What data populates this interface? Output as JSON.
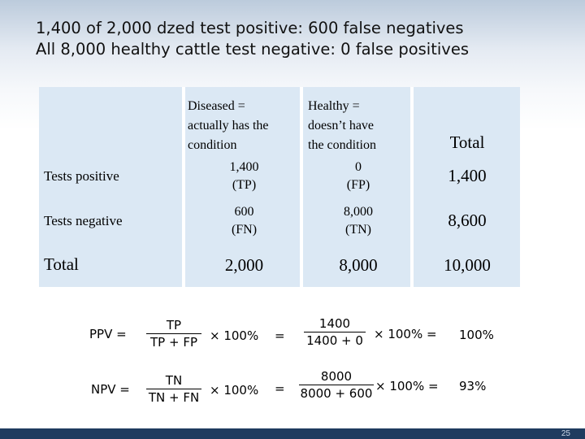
{
  "slide": {
    "title_line1": "1,400 of 2,000 dzed test positive: 600 false negatives",
    "title_line2": "All 8,000 healthy cattle test negative: 0 false positives",
    "page_number": "25"
  },
  "table": {
    "header_diseased": [
      "Diseased =",
      "actually has the",
      "condition"
    ],
    "header_healthy": [
      "Healthy =",
      "doesn’t have",
      "the condition"
    ],
    "header_total": "Total",
    "rows": [
      {
        "label": "Tests positive",
        "diseased": [
          "1,400",
          "(TP)"
        ],
        "healthy": [
          "0",
          "(FP)"
        ],
        "total": "1,400"
      },
      {
        "label": "Tests negative",
        "diseased": [
          "600",
          "(FN)"
        ],
        "healthy": [
          "8,000",
          "(TN)"
        ],
        "total": "8,600"
      },
      {
        "label": "Total",
        "diseased": [
          "2,000"
        ],
        "healthy": [
          "8,000"
        ],
        "total": "10,000"
      }
    ]
  },
  "formulas": {
    "ppv": {
      "label": "PPV =",
      "num": "TP",
      "den": "TP + FP",
      "times": "× 100%",
      "eq": "=",
      "val_num": "1400",
      "val_den": "1400 + 0",
      "val_times": "× 100%  =",
      "result": "100%"
    },
    "npv": {
      "label": "NPV =",
      "num": "TN",
      "den": "TN + FN",
      "times": "× 100%",
      "eq": "=",
      "val_num": "8000",
      "val_den": "8000 + 600",
      "val_times": "× 100%  =",
      "result": "93%"
    }
  }
}
